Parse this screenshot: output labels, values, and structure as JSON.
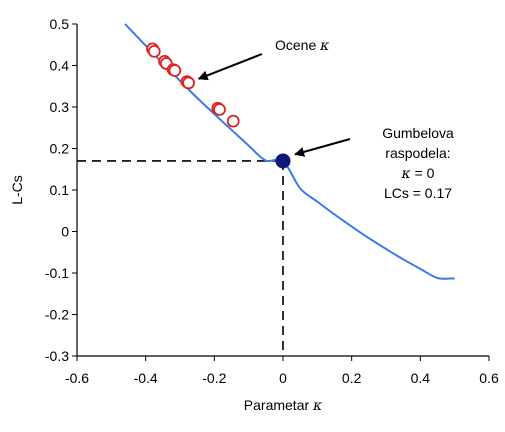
{
  "chart_data": {
    "type": "scatter",
    "xlabel_text": "Parametar ",
    "xlabel_symbol": "κ",
    "ylabel": "L-Cs",
    "xlim": [
      -0.6,
      0.6
    ],
    "ylim": [
      -0.3,
      0.5
    ],
    "x_ticks": [
      -0.6,
      -0.4,
      -0.2,
      0,
      0.2,
      0.4,
      0.6
    ],
    "x_tick_labels": [
      "-0.6",
      "-0.4",
      "-0.2",
      "0",
      "0.2",
      "0.4",
      "0.6"
    ],
    "y_ticks": [
      -0.3,
      -0.2,
      -0.1,
      0,
      0.1,
      0.2,
      0.3,
      0.4,
      0.5
    ],
    "y_tick_labels": [
      "-0.3",
      "-0.2",
      "-0.1",
      "0",
      "0.1",
      "0.2",
      "0.3",
      "0.4",
      "0.5"
    ],
    "grid": false,
    "series": [
      {
        "kind": "line",
        "color": "#3b7ae8",
        "x": [
          -0.46,
          -0.4,
          -0.35,
          -0.3,
          -0.25,
          -0.2,
          -0.15,
          -0.1,
          -0.05,
          0,
          0.05,
          0.1,
          0.15,
          0.2,
          0.25,
          0.3,
          0.35,
          0.4,
          0.45,
          0.5
        ],
        "y": [
          0.5,
          0.448,
          0.405,
          0.363,
          0.322,
          0.283,
          0.245,
          0.207,
          0.171,
          0.17,
          0.104,
          0.072,
          0.041,
          0.012,
          -0.016,
          -0.042,
          -0.067,
          -0.09,
          -0.112,
          -0.113
        ]
      },
      {
        "kind": "markers",
        "marker": "open-circle",
        "color": "#e02020",
        "x": [
          -0.38,
          -0.375,
          -0.345,
          -0.34,
          -0.32,
          -0.315,
          -0.28,
          -0.275,
          -0.19,
          -0.185,
          -0.145
        ],
        "y": [
          0.44,
          0.434,
          0.41,
          0.405,
          0.39,
          0.388,
          0.361,
          0.358,
          0.297,
          0.294,
          0.266
        ]
      },
      {
        "kind": "markers",
        "marker": "filled-circle",
        "color": "#10177a",
        "x": [
          0
        ],
        "y": [
          0.17
        ]
      }
    ],
    "reference_lines": [
      {
        "from": [
          -0.6,
          0.17
        ],
        "to": [
          0,
          0.17
        ],
        "style": "dashed"
      },
      {
        "from": [
          0,
          0.17
        ],
        "to": [
          0,
          -0.3
        ],
        "style": "dashed"
      }
    ],
    "annotations": [
      {
        "lines": [
          {
            "text": "Ocene ",
            "symbol": "κ"
          }
        ],
        "arrow_target": [
          -0.27,
          0.36
        ]
      },
      {
        "lines": [
          {
            "text": "Gumbelova"
          },
          {
            "text": "raspodela:"
          },
          {
            "text": " = 0",
            "symbol": "κ"
          },
          {
            "text": "LCs = 0.17"
          }
        ],
        "arrow_target": [
          0.01,
          0.18
        ]
      }
    ]
  },
  "colors": {
    "curve": "#3b7ae8",
    "estimates": "#e02020",
    "gumbel_point": "#10177a",
    "axis": "#000000"
  }
}
